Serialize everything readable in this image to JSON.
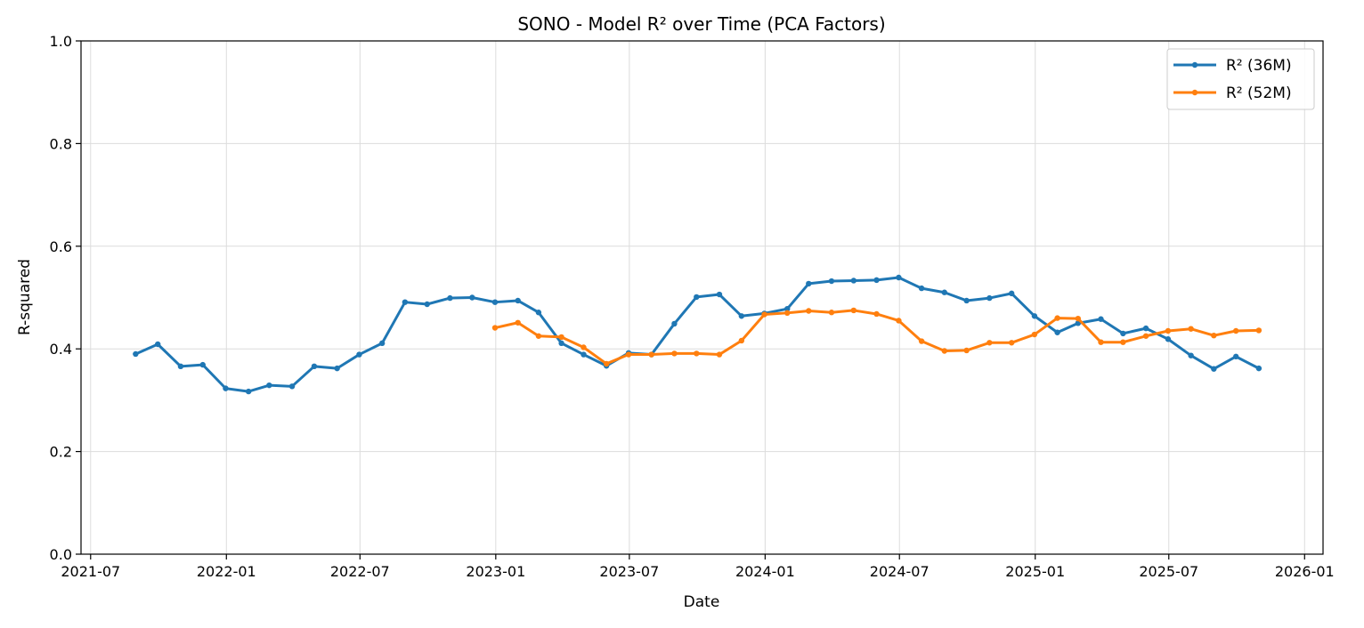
{
  "chart_data": {
    "type": "line",
    "title": "SONO - Model R² over Time (PCA Factors)",
    "xlabel": "Date",
    "ylabel": "R-squared",
    "ylim": [
      0,
      1
    ],
    "xlim": [
      "2021-06-18",
      "2026-01-26"
    ],
    "x_ticks": [
      "2021-07",
      "2022-01",
      "2022-07",
      "2023-01",
      "2023-07",
      "2024-01",
      "2024-07",
      "2025-01",
      "2025-07",
      "2026-01"
    ],
    "y_ticks": [
      "0.0",
      "0.2",
      "0.4",
      "0.6",
      "0.8",
      "1.0"
    ],
    "grid": true,
    "legend_position": "top-right",
    "series": [
      {
        "name": "R² (36M)",
        "color": "#1f77b4",
        "x": [
          "2021-08-31",
          "2021-09-30",
          "2021-10-31",
          "2021-11-30",
          "2021-12-31",
          "2022-01-31",
          "2022-02-28",
          "2022-03-31",
          "2022-04-30",
          "2022-05-31",
          "2022-06-30",
          "2022-07-31",
          "2022-08-31",
          "2022-09-30",
          "2022-10-31",
          "2022-11-30",
          "2022-12-31",
          "2023-01-31",
          "2023-02-28",
          "2023-03-31",
          "2023-04-30",
          "2023-05-31",
          "2023-06-30",
          "2023-07-31",
          "2023-08-31",
          "2023-09-30",
          "2023-10-31",
          "2023-11-30",
          "2023-12-31",
          "2024-01-31",
          "2024-02-29",
          "2024-03-31",
          "2024-04-30",
          "2024-05-31",
          "2024-06-30",
          "2024-07-31",
          "2024-08-31",
          "2024-09-30",
          "2024-10-31",
          "2024-11-30",
          "2024-12-31",
          "2025-01-31",
          "2025-02-28",
          "2025-03-31",
          "2025-04-30",
          "2025-05-31",
          "2025-06-30",
          "2025-07-31",
          "2025-08-31",
          "2025-09-30",
          "2025-10-31"
        ],
        "values": [
          0.39,
          0.409,
          0.366,
          0.369,
          0.323,
          0.317,
          0.329,
          0.327,
          0.366,
          0.362,
          0.389,
          0.411,
          0.491,
          0.487,
          0.499,
          0.5,
          0.491,
          0.494,
          0.471,
          0.411,
          0.389,
          0.367,
          0.392,
          0.389,
          0.449,
          0.501,
          0.506,
          0.464,
          0.469,
          0.478,
          0.527,
          0.532,
          0.533,
          0.534,
          0.539,
          0.518,
          0.51,
          0.494,
          0.499,
          0.508,
          0.464,
          0.432,
          0.45,
          0.458,
          0.43,
          0.44,
          0.419,
          0.387,
          0.361,
          0.385,
          0.362
        ]
      },
      {
        "name": "R² (52M)",
        "color": "#ff7f0e",
        "x": [
          "2022-12-31",
          "2023-01-31",
          "2023-02-28",
          "2023-03-31",
          "2023-04-30",
          "2023-05-31",
          "2023-06-30",
          "2023-07-31",
          "2023-08-31",
          "2023-09-30",
          "2023-10-31",
          "2023-11-30",
          "2023-12-31",
          "2024-01-31",
          "2024-02-29",
          "2024-03-31",
          "2024-04-30",
          "2024-05-31",
          "2024-06-30",
          "2024-07-31",
          "2024-08-31",
          "2024-09-30",
          "2024-10-31",
          "2024-11-30",
          "2024-12-31",
          "2025-01-31",
          "2025-02-28",
          "2025-03-31",
          "2025-04-30",
          "2025-05-31",
          "2025-06-30",
          "2025-07-31",
          "2025-08-31",
          "2025-09-30",
          "2025-10-31"
        ],
        "values": [
          0.441,
          0.451,
          0.425,
          0.423,
          0.403,
          0.371,
          0.389,
          0.389,
          0.391,
          0.391,
          0.389,
          0.416,
          0.467,
          0.47,
          0.474,
          0.471,
          0.475,
          0.468,
          0.455,
          0.415,
          0.396,
          0.397,
          0.412,
          0.412,
          0.428,
          0.46,
          0.459,
          0.413,
          0.413,
          0.425,
          0.435,
          0.439,
          0.426,
          0.435,
          0.436
        ]
      }
    ]
  }
}
